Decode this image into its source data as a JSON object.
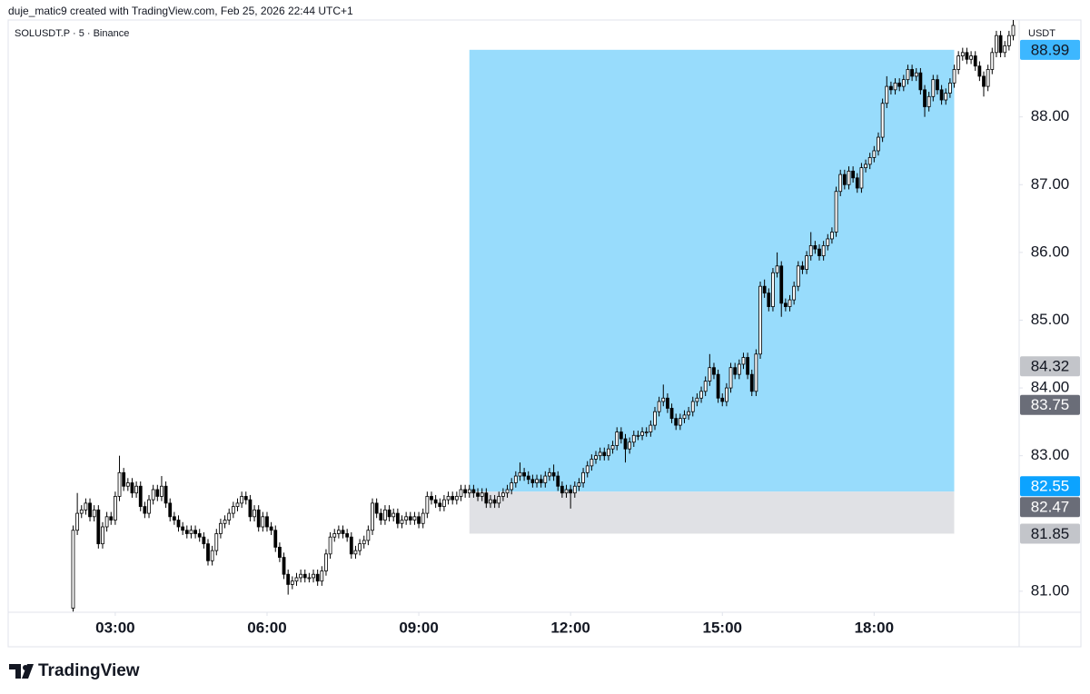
{
  "chart_data": {
    "type": "candlestick",
    "subtitle": "duje_matic9 created with TradingView.com, Feb 25, 2026 22:44 UTC+1",
    "title": "SOLUSDT.P · 5 · Binance",
    "currency_label": "USDT",
    "brand": "TradingView",
    "up_color": "#ffffff",
    "down_color": "#000000",
    "wick_color": "#000000",
    "xlim": [
      53,
      1252
    ],
    "ylim": [
      80.69,
      89.43
    ],
    "xticks": [
      {
        "value": 180,
        "label": "03:00"
      },
      {
        "value": 360,
        "label": "06:00"
      },
      {
        "value": 540,
        "label": "09:00"
      },
      {
        "value": 720,
        "label": "12:00"
      },
      {
        "value": 900,
        "label": "15:00"
      },
      {
        "value": 1080,
        "label": "18:00"
      }
    ],
    "yticks": [
      {
        "value": 81,
        "label": "81.00"
      },
      {
        "value": 83,
        "label": "83.00"
      },
      {
        "value": 84,
        "label": "84.00"
      },
      {
        "value": 85,
        "label": "85.00"
      },
      {
        "value": 86,
        "label": "86.00"
      },
      {
        "value": 87,
        "label": "87.00"
      },
      {
        "value": 88,
        "label": "88.00"
      }
    ],
    "position": {
      "entry": 82.47,
      "target": 88.99,
      "stop": 81.85,
      "start": 600,
      "end": 1175,
      "profit_color": "#98dcfc",
      "loss_color": "#e0e1e5"
    },
    "price_labels": [
      {
        "price": 88.99,
        "color": "#3db7ff",
        "text_color": "#131722"
      },
      {
        "price": 84.32,
        "color": "#c3c5ca",
        "text_color": "#131722"
      },
      {
        "price": 83.75,
        "color": "#6a6d78",
        "text_color": "#ffffff"
      },
      {
        "price": 82.55,
        "color": "#0ca3ff",
        "text_color": "#ffffff"
      },
      {
        "price": 82.47,
        "color": "#6a6d78",
        "text_color": "#ffffff"
      },
      {
        "price": 81.85,
        "color": "#c3c5ca",
        "text_color": "#131722"
      }
    ],
    "x": [
      130,
      135,
      140,
      145,
      150,
      155,
      160,
      165,
      170,
      175,
      180,
      185,
      190,
      195,
      200,
      205,
      210,
      215,
      220,
      225,
      230,
      235,
      240,
      245,
      250,
      255,
      260,
      265,
      270,
      275,
      280,
      285,
      290,
      295,
      300,
      305,
      310,
      315,
      320,
      325,
      330,
      335,
      340,
      345,
      350,
      355,
      360,
      365,
      370,
      375,
      380,
      385,
      390,
      395,
      400,
      405,
      410,
      415,
      420,
      425,
      430,
      435,
      440,
      445,
      450,
      455,
      460,
      465,
      470,
      475,
      480,
      485,
      490,
      495,
      500,
      505,
      510,
      515,
      520,
      525,
      530,
      535,
      540,
      545,
      550,
      555,
      560,
      565,
      570,
      575,
      580,
      585,
      590,
      595,
      600,
      605,
      610,
      615,
      620,
      625,
      630,
      635,
      640,
      645,
      650,
      655,
      660,
      665,
      670,
      675,
      680,
      685,
      690,
      695,
      700,
      705,
      710,
      715,
      720,
      725,
      730,
      735,
      740,
      745,
      750,
      755,
      760,
      765,
      770,
      775,
      780,
      785,
      790,
      795,
      800,
      805,
      810,
      815,
      820,
      825,
      830,
      835,
      840,
      845,
      850,
      855,
      860,
      865,
      870,
      875,
      880,
      885,
      890,
      895,
      900,
      905,
      910,
      915,
      920,
      925,
      930,
      935,
      940,
      945,
      950,
      955,
      960,
      965,
      970,
      975,
      980,
      985,
      990,
      995,
      1000,
      1005,
      1010,
      1015,
      1020,
      1025,
      1030,
      1035,
      1040,
      1045,
      1050,
      1055,
      1060,
      1065,
      1070,
      1075,
      1080,
      1085,
      1090,
      1095,
      1100,
      1105,
      1110,
      1115,
      1120,
      1125,
      1130,
      1135,
      1140,
      1145,
      1150,
      1155,
      1160,
      1165,
      1170,
      1175,
      1180,
      1185,
      1190,
      1195,
      1200,
      1205,
      1210,
      1215,
      1220,
      1225,
      1230,
      1235,
      1240,
      1245
    ],
    "open": [
      80.75,
      81.9,
      82.15,
      82.2,
      82.3,
      82.1,
      82.2,
      81.7,
      81.95,
      82.1,
      82.05,
      82.4,
      82.75,
      82.55,
      82.6,
      82.45,
      82.55,
      82.25,
      82.15,
      82.35,
      82.5,
      82.4,
      82.55,
      82.3,
      82.1,
      82.05,
      81.95,
      81.9,
      81.85,
      81.9,
      81.85,
      81.8,
      81.7,
      81.45,
      81.6,
      81.85,
      82.0,
      82.05,
      82.15,
      82.25,
      82.3,
      82.4,
      82.35,
      82.1,
      82.2,
      81.95,
      82.1,
      81.95,
      81.9,
      81.65,
      81.5,
      81.25,
      81.1,
      81.15,
      81.2,
      81.25,
      81.2,
      81.2,
      81.25,
      81.15,
      81.3,
      81.55,
      81.8,
      81.85,
      81.9,
      81.85,
      81.8,
      81.55,
      81.6,
      81.7,
      81.75,
      81.9,
      82.3,
      82.15,
      82.05,
      82.2,
      82.1,
      82.15,
      82.0,
      82.05,
      82.1,
      82.05,
      82.1,
      82.0,
      82.15,
      82.4,
      82.35,
      82.3,
      82.25,
      82.35,
      82.4,
      82.35,
      82.4,
      82.5,
      82.45,
      82.5,
      82.45,
      82.4,
      82.45,
      82.3,
      82.35,
      82.3,
      82.4,
      82.45,
      82.5,
      82.6,
      82.7,
      82.75,
      82.7,
      82.65,
      82.6,
      82.65,
      82.6,
      82.7,
      82.75,
      82.7,
      82.55,
      82.45,
      82.5,
      82.45,
      82.55,
      82.6,
      82.75,
      82.85,
      82.95,
      83.0,
      83.05,
      83.0,
      83.1,
      83.15,
      83.35,
      83.25,
      83.1,
      83.2,
      83.3,
      83.3,
      83.35,
      83.35,
      83.45,
      83.65,
      83.8,
      83.85,
      83.7,
      83.55,
      83.45,
      83.55,
      83.6,
      83.65,
      83.8,
      83.85,
      83.95,
      84.1,
      84.3,
      84.2,
      83.85,
      83.8,
      84.0,
      84.3,
      84.2,
      84.35,
      84.45,
      84.2,
      83.95,
      84.5,
      85.5,
      85.4,
      85.2,
      85.7,
      85.8,
      85.25,
      85.2,
      85.3,
      85.5,
      85.8,
      85.75,
      85.95,
      86.1,
      86.05,
      85.95,
      86.1,
      86.2,
      86.3,
      86.9,
      87.15,
      87.0,
      87.2,
      87.1,
      86.95,
      87.25,
      87.3,
      87.4,
      87.5,
      87.7,
      88.2,
      88.45,
      88.4,
      88.5,
      88.45,
      88.55,
      88.7,
      88.6,
      88.65,
      88.4,
      88.15,
      88.3,
      88.55,
      88.4,
      88.25,
      88.35,
      88.5,
      88.7,
      88.9,
      88.95,
      88.85,
      88.9,
      88.75,
      88.6,
      88.45,
      88.7,
      88.95,
      89.2,
      88.95,
      89.05,
      89.2
    ],
    "high": [
      81.97,
      82.45,
      82.27,
      82.37,
      82.37,
      82.27,
      82.27,
      82.02,
      82.17,
      82.17,
      82.47,
      83.0,
      82.82,
      82.67,
      82.67,
      82.62,
      82.62,
      82.32,
      82.42,
      82.57,
      82.57,
      82.7,
      82.62,
      82.37,
      82.17,
      82.12,
      82.02,
      81.97,
      81.97,
      81.97,
      81.92,
      81.87,
      81.77,
      81.67,
      81.92,
      82.07,
      82.12,
      82.22,
      82.32,
      82.37,
      82.47,
      82.47,
      82.42,
      82.27,
      82.27,
      82.17,
      82.17,
      82.02,
      81.97,
      81.72,
      81.57,
      81.32,
      81.22,
      81.27,
      81.32,
      81.32,
      81.27,
      81.32,
      81.32,
      81.37,
      81.62,
      81.87,
      81.92,
      81.97,
      81.97,
      81.92,
      81.87,
      81.67,
      81.77,
      81.82,
      81.97,
      82.37,
      82.37,
      82.22,
      82.27,
      82.27,
      82.22,
      82.22,
      82.12,
      82.17,
      82.17,
      82.17,
      82.17,
      82.22,
      82.47,
      82.47,
      82.42,
      82.37,
      82.42,
      82.47,
      82.47,
      82.47,
      82.57,
      82.57,
      82.57,
      82.57,
      82.52,
      82.52,
      82.52,
      82.42,
      82.42,
      82.47,
      82.52,
      82.57,
      82.67,
      82.77,
      82.9,
      82.82,
      82.77,
      82.72,
      82.72,
      82.72,
      82.77,
      82.82,
      82.87,
      82.77,
      82.62,
      82.57,
      82.57,
      82.62,
      82.67,
      82.82,
      82.92,
      83.02,
      83.07,
      83.12,
      83.12,
      83.17,
      83.22,
      83.42,
      83.42,
      83.32,
      83.27,
      83.37,
      83.37,
      83.42,
      83.42,
      83.52,
      83.72,
      83.87,
      84.05,
      83.92,
      83.77,
      83.62,
      83.62,
      83.67,
      83.72,
      83.87,
      83.92,
      84.02,
      84.17,
      84.5,
      84.37,
      84.27,
      83.92,
      84.07,
      84.37,
      84.37,
      84.42,
      84.52,
      84.52,
      84.27,
      84.57,
      85.57,
      85.6,
      85.47,
      85.77,
      86.0,
      85.87,
      85.32,
      85.37,
      85.57,
      85.87,
      85.87,
      86.02,
      86.3,
      86.17,
      86.12,
      86.17,
      86.27,
      86.37,
      86.97,
      87.22,
      87.22,
      87.27,
      87.27,
      87.17,
      87.32,
      87.37,
      87.47,
      87.57,
      87.77,
      88.27,
      88.6,
      88.52,
      88.57,
      88.57,
      88.62,
      88.77,
      88.77,
      88.72,
      88.72,
      88.47,
      88.37,
      88.62,
      88.62,
      88.47,
      88.42,
      88.57,
      88.77,
      88.97,
      89.02,
      89.02,
      88.97,
      88.97,
      88.82,
      88.67,
      88.77,
      89.02,
      89.27,
      89.27,
      89.12,
      89.27,
      89.45
    ],
    "low": [
      80.7,
      81.83,
      82.08,
      82.13,
      82.03,
      82.03,
      81.63,
      81.63,
      81.88,
      81.98,
      81.98,
      82.33,
      82.48,
      82.48,
      82.38,
      82.38,
      82.18,
      82.08,
      82.08,
      82.28,
      82.33,
      82.33,
      82.23,
      82.03,
      81.98,
      81.88,
      81.83,
      81.78,
      81.78,
      81.78,
      81.73,
      81.63,
      81.38,
      81.38,
      81.53,
      81.78,
      81.93,
      81.98,
      82.08,
      82.18,
      82.23,
      82.28,
      82.03,
      82.03,
      81.88,
      81.88,
      81.88,
      81.83,
      81.58,
      81.43,
      81.18,
      80.95,
      81.03,
      81.08,
      81.13,
      81.13,
      81.13,
      81.13,
      81.08,
      81.08,
      81.23,
      81.48,
      81.73,
      81.78,
      81.78,
      81.73,
      81.48,
      81.48,
      81.53,
      81.63,
      81.68,
      81.83,
      82.08,
      81.98,
      81.98,
      82.03,
      82.03,
      81.93,
      81.93,
      81.98,
      81.98,
      81.98,
      81.93,
      81.93,
      82.08,
      82.28,
      82.23,
      82.18,
      82.18,
      82.28,
      82.28,
      82.28,
      82.33,
      82.38,
      82.38,
      82.38,
      82.33,
      82.33,
      82.23,
      82.23,
      82.23,
      82.23,
      82.33,
      82.38,
      82.43,
      82.53,
      82.63,
      82.63,
      82.58,
      82.53,
      82.53,
      82.53,
      82.53,
      82.63,
      82.63,
      82.48,
      82.38,
      82.38,
      82.22,
      82.38,
      82.48,
      82.53,
      82.68,
      82.78,
      82.88,
      82.93,
      82.93,
      82.93,
      83.03,
      83.08,
      83.18,
      82.9,
      83.03,
      83.13,
      83.23,
      83.23,
      83.28,
      83.28,
      83.38,
      83.58,
      83.73,
      83.63,
      83.48,
      83.38,
      83.38,
      83.48,
      83.53,
      83.58,
      83.73,
      83.78,
      83.88,
      84.03,
      84.13,
      83.78,
      83.73,
      83.73,
      83.93,
      84.13,
      84.13,
      84.28,
      84.13,
      83.88,
      83.88,
      84.43,
      85.33,
      85.13,
      85.13,
      85.63,
      85.05,
      85.13,
      85.13,
      85.23,
      85.43,
      85.68,
      85.68,
      85.88,
      85.98,
      85.88,
      85.88,
      86.03,
      86.13,
      86.23,
      86.83,
      86.93,
      86.93,
      87.03,
      86.88,
      86.88,
      87.18,
      87.23,
      87.33,
      87.43,
      87.63,
      88.13,
      88.33,
      88.33,
      88.38,
      88.38,
      88.48,
      88.53,
      88.53,
      88.33,
      88.0,
      88.08,
      88.23,
      88.33,
      88.18,
      88.18,
      88.28,
      88.43,
      88.63,
      88.83,
      88.78,
      88.78,
      88.68,
      88.53,
      88.3,
      88.38,
      88.63,
      88.88,
      88.88,
      88.88,
      88.98,
      89.13
    ],
    "close": [
      81.9,
      82.15,
      82.2,
      82.3,
      82.1,
      82.2,
      81.7,
      81.95,
      82.1,
      82.05,
      82.4,
      82.75,
      82.55,
      82.6,
      82.45,
      82.55,
      82.25,
      82.15,
      82.35,
      82.5,
      82.4,
      82.55,
      82.3,
      82.1,
      82.05,
      81.95,
      81.9,
      81.85,
      81.9,
      81.85,
      81.8,
      81.7,
      81.45,
      81.6,
      81.85,
      82.0,
      82.05,
      82.15,
      82.25,
      82.3,
      82.4,
      82.35,
      82.1,
      82.2,
      81.95,
      82.1,
      81.95,
      81.9,
      81.65,
      81.5,
      81.25,
      81.1,
      81.15,
      81.2,
      81.25,
      81.2,
      81.2,
      81.25,
      81.15,
      81.3,
      81.55,
      81.8,
      81.85,
      81.9,
      81.85,
      81.8,
      81.55,
      81.6,
      81.7,
      81.75,
      81.9,
      82.3,
      82.15,
      82.05,
      82.2,
      82.1,
      82.15,
      82.0,
      82.05,
      82.1,
      82.05,
      82.1,
      82.0,
      82.15,
      82.4,
      82.35,
      82.3,
      82.25,
      82.35,
      82.4,
      82.35,
      82.4,
      82.5,
      82.45,
      82.5,
      82.45,
      82.4,
      82.45,
      82.3,
      82.35,
      82.3,
      82.4,
      82.45,
      82.5,
      82.6,
      82.7,
      82.75,
      82.7,
      82.65,
      82.6,
      82.65,
      82.6,
      82.7,
      82.75,
      82.7,
      82.55,
      82.45,
      82.5,
      82.45,
      82.55,
      82.6,
      82.75,
      82.85,
      82.95,
      83.0,
      83.05,
      83.0,
      83.1,
      83.15,
      83.35,
      83.25,
      83.1,
      83.2,
      83.3,
      83.3,
      83.35,
      83.35,
      83.45,
      83.65,
      83.8,
      83.85,
      83.7,
      83.55,
      83.45,
      83.55,
      83.6,
      83.65,
      83.8,
      83.85,
      83.95,
      84.1,
      84.3,
      84.2,
      83.85,
      83.8,
      84.0,
      84.3,
      84.2,
      84.35,
      84.45,
      84.2,
      83.95,
      84.5,
      85.5,
      85.4,
      85.2,
      85.7,
      85.8,
      85.25,
      85.2,
      85.3,
      85.5,
      85.8,
      85.75,
      85.95,
      86.1,
      86.05,
      85.95,
      86.1,
      86.2,
      86.3,
      86.9,
      87.15,
      87.0,
      87.2,
      87.1,
      86.95,
      87.25,
      87.3,
      87.4,
      87.5,
      87.7,
      88.2,
      88.45,
      88.4,
      88.5,
      88.45,
      88.55,
      88.7,
      88.6,
      88.65,
      88.4,
      88.15,
      88.3,
      88.55,
      88.4,
      88.25,
      88.35,
      88.5,
      88.7,
      88.9,
      88.95,
      88.85,
      88.9,
      88.75,
      88.6,
      88.45,
      88.7,
      88.95,
      89.2,
      88.95,
      89.05,
      89.2,
      89.35
    ]
  }
}
